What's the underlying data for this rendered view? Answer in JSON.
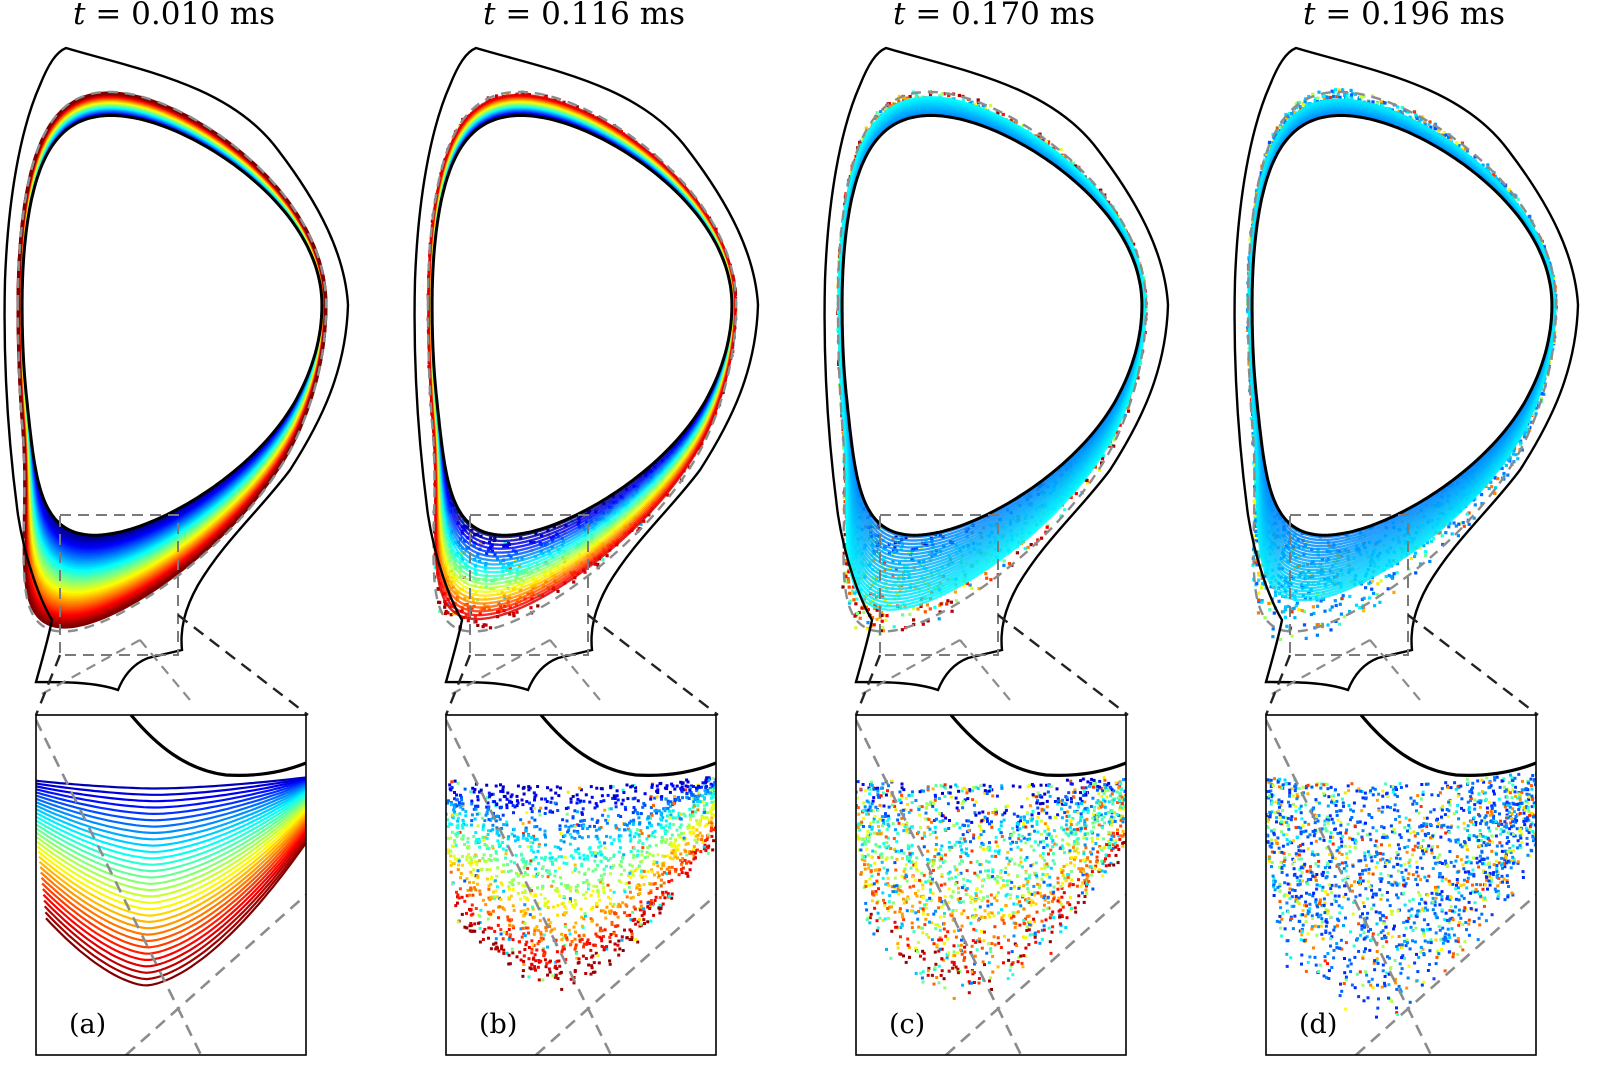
{
  "figure": {
    "panels": [
      {
        "id": "a",
        "time_var": "t",
        "time_rest": " = 0.010 ms",
        "label": "(a)",
        "mix": 0.0,
        "spread": 0.0
      },
      {
        "id": "b",
        "time_var": "t",
        "time_rest": " = 0.116 ms",
        "label": "(b)",
        "mix": 0.15,
        "spread": 0.25
      },
      {
        "id": "c",
        "time_var": "t",
        "time_rest": " = 0.170 ms",
        "label": "(c)",
        "mix": 0.55,
        "spread": 0.55
      },
      {
        "id": "d",
        "time_var": "t",
        "time_rest": " = 0.196 ms",
        "label": "(d)",
        "mix": 1.0,
        "spread": 0.85
      }
    ],
    "colormap": "jet",
    "colors": {
      "wall": "#000000",
      "separatrix": "#8c8c8c",
      "zoom_box": "#7a7a7a",
      "background": "#ffffff"
    }
  }
}
